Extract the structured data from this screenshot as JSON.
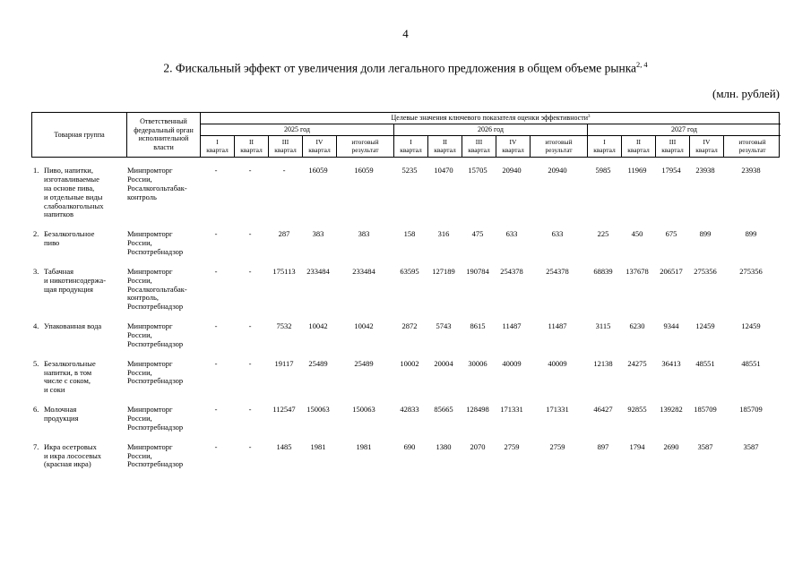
{
  "page": {
    "number": "4",
    "title": "2. Фискальный эффект от увеличения доли легального предложения в общем объеме рынка",
    "title_superscript": "2, 4",
    "units": "(млн. рублей)"
  },
  "table": {
    "header": {
      "product_group": "Товарная группа",
      "responsible": "Ответственный\nфедеральный орган\nисполнительной\nвласти",
      "kpi_title": "Целевые значения ключевого показателя оценки эффективности",
      "kpi_superscript": "3",
      "years": [
        "2025 год",
        "2026 год",
        "2027 год"
      ],
      "quarters": [
        "I\nквартал",
        "II\nквартал",
        "III\nквартал",
        "IV\nквартал",
        "итоговый\nрезультат"
      ]
    },
    "rows": [
      {
        "num": "1.",
        "group": "Пиво, напитки,\nизготавливаемые\nна основе пива,\nи отдельные виды\nслабоалкогольных\nнапитков",
        "agency": "Минпромторг\nРоссии,\nРосалкогольтабак-\nконтроль",
        "values": [
          "-",
          "-",
          "-",
          "16059",
          "16059",
          "5235",
          "10470",
          "15705",
          "20940",
          "20940",
          "5985",
          "11969",
          "17954",
          "23938",
          "23938"
        ]
      },
      {
        "num": "2.",
        "group": "Безалкогольное\nпиво",
        "agency": "Минпромторг\nРоссии,\nРоспотребнадзор",
        "values": [
          "-",
          "-",
          "287",
          "383",
          "383",
          "158",
          "316",
          "475",
          "633",
          "633",
          "225",
          "450",
          "675",
          "899",
          "899"
        ]
      },
      {
        "num": "3.",
        "group": "Табачная\nи никотинсодержа-\nщая продукция",
        "agency": "Минпромторг\nРоссии,\nРосалкогольтабак-\nконтроль,\nРоспотребнадзор",
        "values": [
          "-",
          "-",
          "175113",
          "233484",
          "233484",
          "63595",
          "127189",
          "190784",
          "254378",
          "254378",
          "68839",
          "137678",
          "206517",
          "275356",
          "275356"
        ]
      },
      {
        "num": "4.",
        "group": "Упакованная вода",
        "agency": "Минпромторг\nРоссии,\nРоспотребнадзор",
        "values": [
          "-",
          "-",
          "7532",
          "10042",
          "10042",
          "2872",
          "5743",
          "8615",
          "11487",
          "11487",
          "3115",
          "6230",
          "9344",
          "12459",
          "12459"
        ]
      },
      {
        "num": "5.",
        "group": "Безалкогольные\nнапитки, в том\nчисле с соком,\nи соки",
        "agency": "Минпромторг\nРоссии,\nРоспотребнадзор",
        "values": [
          "-",
          "-",
          "19117",
          "25489",
          "25489",
          "10002",
          "20004",
          "30006",
          "40009",
          "40009",
          "12138",
          "24275",
          "36413",
          "48551",
          "48551"
        ]
      },
      {
        "num": "6.",
        "group": "Молочная\nпродукция",
        "agency": "Минпромторг\nРоссии,\nРоспотребнадзор",
        "values": [
          "-",
          "-",
          "112547",
          "150063",
          "150063",
          "42833",
          "85665",
          "128498",
          "171331",
          "171331",
          "46427",
          "92855",
          "139282",
          "185709",
          "185709"
        ]
      },
      {
        "num": "7.",
        "group": "Икра осетровых\nи икра лососевых\n(красная икра)",
        "agency": "Минпромторг\nРоссии,\nРоспотребнадзор",
        "values": [
          "-",
          "-",
          "1485",
          "1981",
          "1981",
          "690",
          "1380",
          "2070",
          "2759",
          "2759",
          "897",
          "1794",
          "2690",
          "3587",
          "3587"
        ]
      }
    ]
  }
}
